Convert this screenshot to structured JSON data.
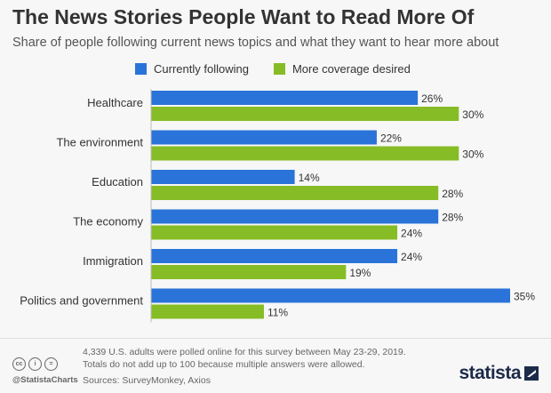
{
  "title": "The News Stories People Want to Read More Of",
  "subtitle": "Share of people following current news topics and what they want to hear more about",
  "footer": {
    "note_line1": "4,339 U.S. adults were polled online for this survey between May 23-29, 2019.",
    "note_line2": "Totals do not add up to 100 because multiple answers were allowed.",
    "sources": "Sources: SurveyMonkey, Axios",
    "handle": "@StatistaCharts",
    "brand": "statista",
    "cc_icons": [
      "cc-icon",
      "by-icon",
      "nd-icon"
    ]
  },
  "colors": {
    "following": "#2a73d9",
    "desired": "#86bc25",
    "background": "#f7f7f7"
  },
  "chart_data": {
    "type": "bar",
    "orientation": "horizontal",
    "categories": [
      "Healthcare",
      "The environment",
      "Education",
      "The economy",
      "Immigration",
      "Politics and government"
    ],
    "series": [
      {
        "name": "Currently following",
        "values": [
          26,
          22,
          14,
          28,
          24,
          35
        ]
      },
      {
        "name": "More coverage desired",
        "values": [
          30,
          30,
          28,
          24,
          19,
          11
        ]
      }
    ],
    "value_suffix": "%",
    "xlim": [
      0,
      35
    ],
    "grid": false,
    "legend_position": "top"
  }
}
